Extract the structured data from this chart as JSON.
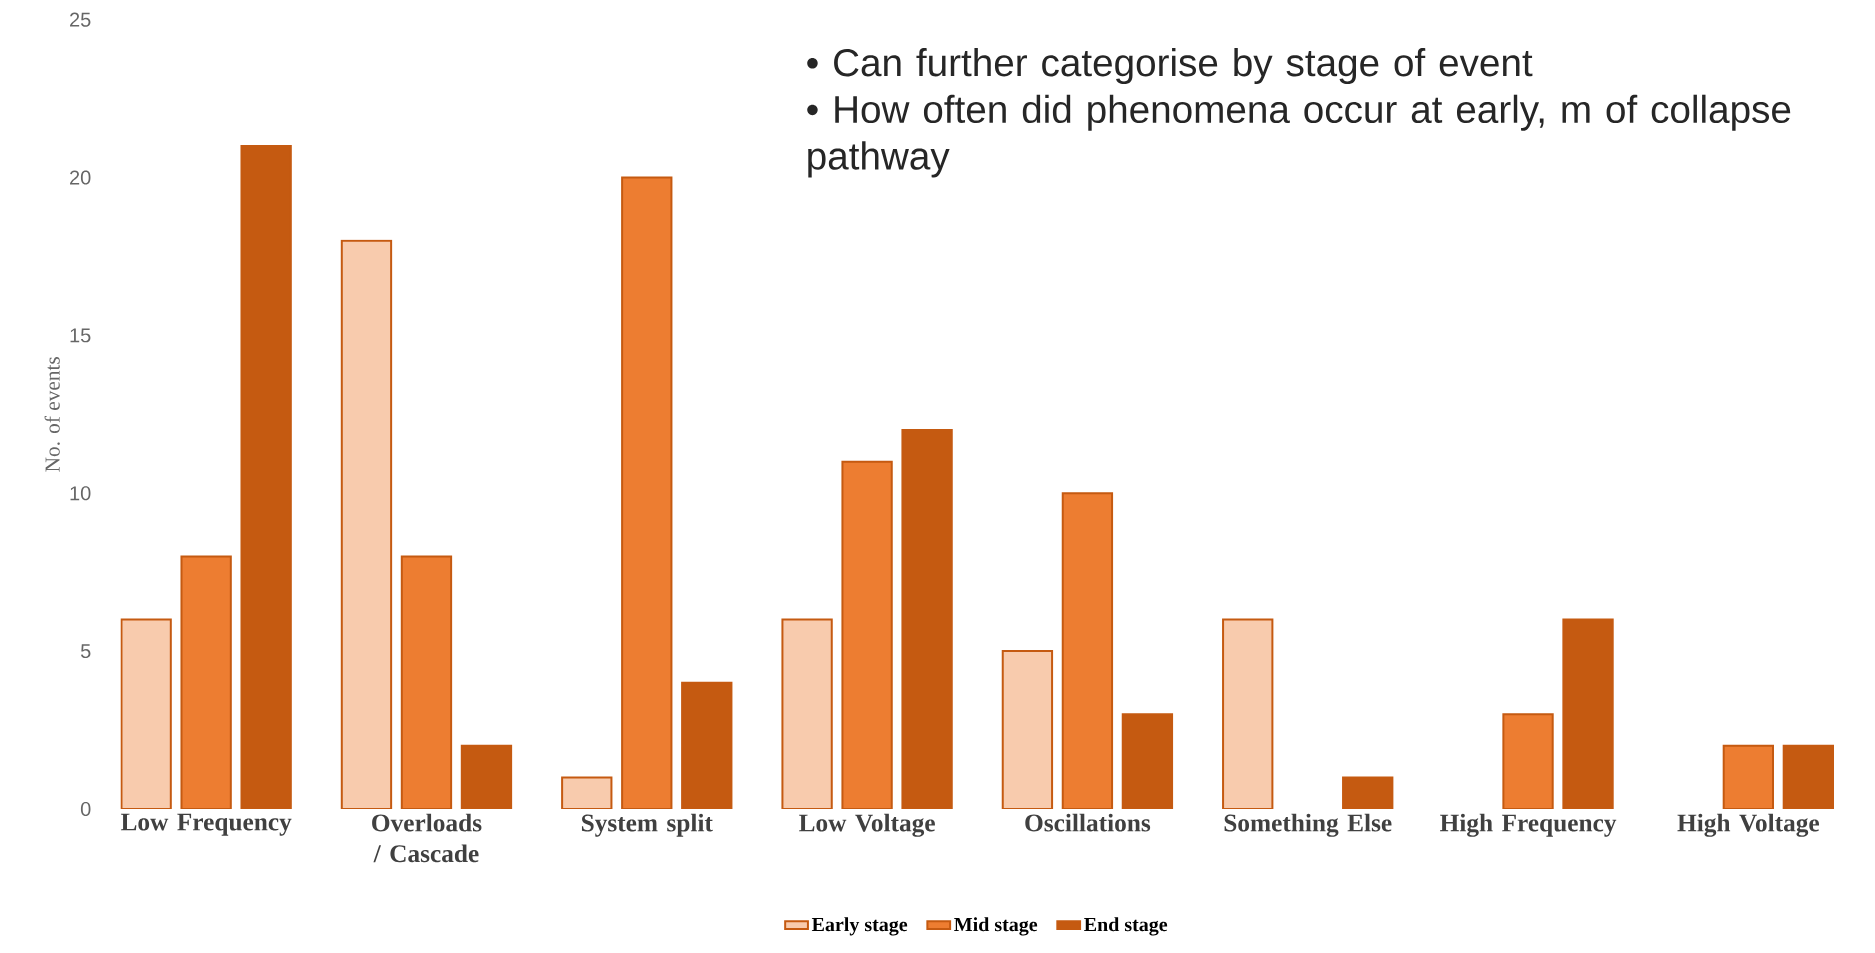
{
  "chart_data": {
    "type": "bar",
    "categories": [
      "Low Frequency",
      "Overloads / Cascade",
      "System split",
      "Low Voltage",
      "Oscillations",
      "Something Else",
      "High Frequency",
      "High Voltage"
    ],
    "series": [
      {
        "name": "Early stage",
        "color": "#f8cbad",
        "values": [
          6,
          18,
          1,
          6,
          5,
          6,
          null,
          null
        ]
      },
      {
        "name": "Mid stage",
        "color": "#ed7d31",
        "values": [
          8,
          8,
          20,
          11,
          10,
          null,
          3,
          2
        ]
      },
      {
        "name": "End stage",
        "color": "#c55a11",
        "values": [
          21,
          2,
          4,
          12,
          3,
          1,
          6,
          2
        ]
      }
    ],
    "ylabel": "No. of events",
    "ylim": [
      0,
      25
    ],
    "yticks": [
      0,
      5,
      10,
      15,
      20,
      25
    ],
    "grid": false,
    "legend": "bottom",
    "annotations": [
      "• Can further categorise by stage of event",
      "• How often did phenomena occur at early, m of collapse pathway"
    ]
  }
}
